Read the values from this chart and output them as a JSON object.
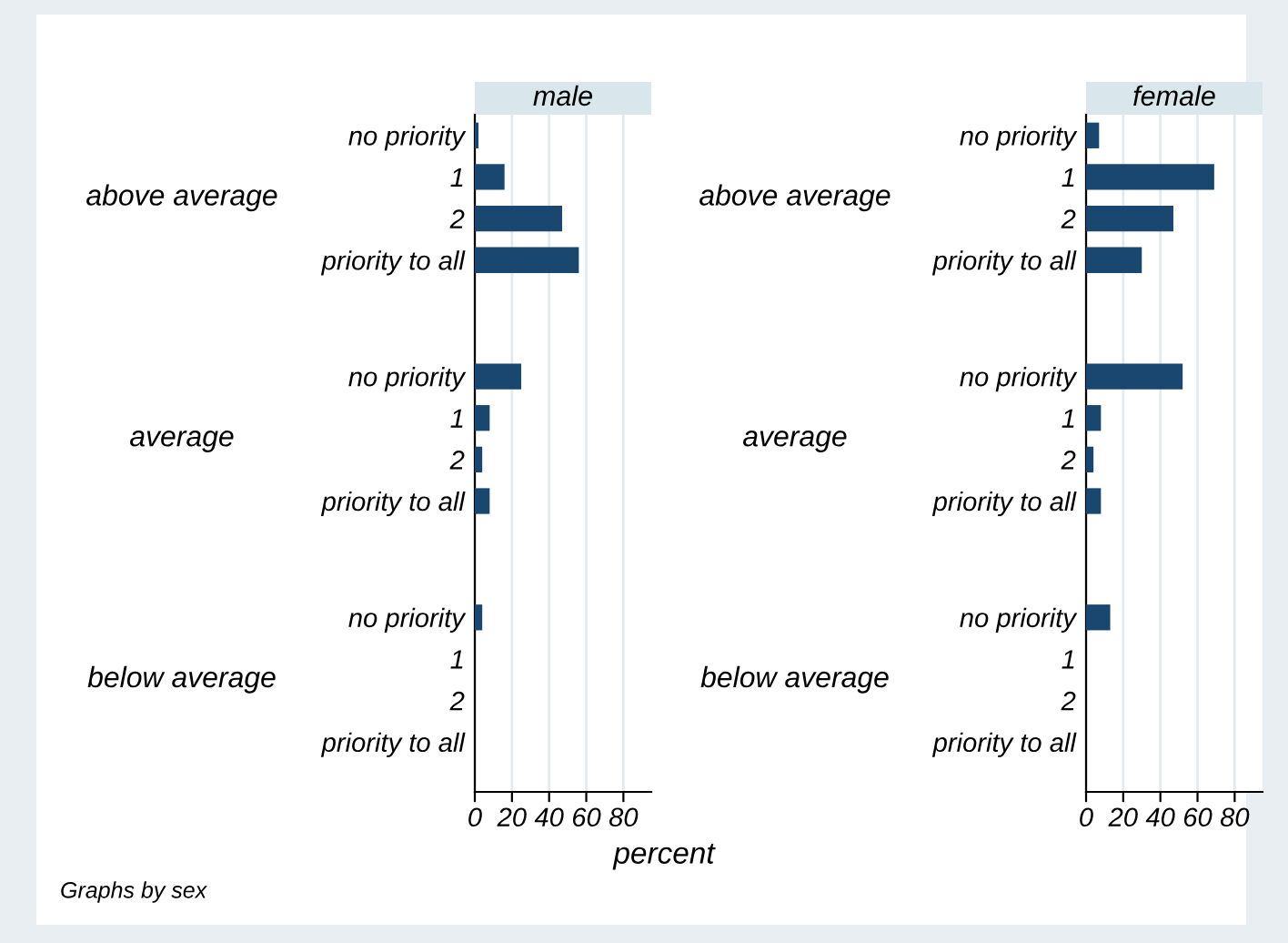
{
  "chart_data": [
    {
      "type": "bar",
      "orientation": "horizontal",
      "title": "male",
      "xlabel": "percent",
      "categories": [
        "no priority",
        "1",
        "2",
        "priority to all",
        "no priority",
        "1",
        "2",
        "priority to all",
        "no priority",
        "1",
        "2",
        "priority to all"
      ],
      "values": [
        2,
        16,
        47,
        56,
        25,
        8,
        4,
        8,
        4,
        0,
        0,
        0
      ],
      "color": "#1a476f",
      "xlim": [
        0,
        95
      ],
      "xticks": [
        0,
        20,
        40,
        60,
        80
      ],
      "grid": "x",
      "annotations": [
        "above average",
        "average",
        "below average"
      ]
    },
    {
      "type": "bar",
      "orientation": "horizontal",
      "title": "female",
      "categories": [
        "no priority",
        "1",
        "2",
        "priority to all",
        "no priority",
        "1",
        "2",
        "priority to all",
        "no priority",
        "1",
        "2",
        "priority to all"
      ],
      "values": [
        7,
        69,
        47,
        30,
        52,
        8,
        4,
        8,
        13,
        0,
        0,
        0
      ],
      "color": "#1a476f",
      "xlim": [
        0,
        95
      ],
      "xticks": [
        0,
        20,
        40,
        60,
        80
      ],
      "grid": "x",
      "annotations": [
        "above average",
        "average",
        "below average",
        "Graphs by sex"
      ]
    }
  ]
}
